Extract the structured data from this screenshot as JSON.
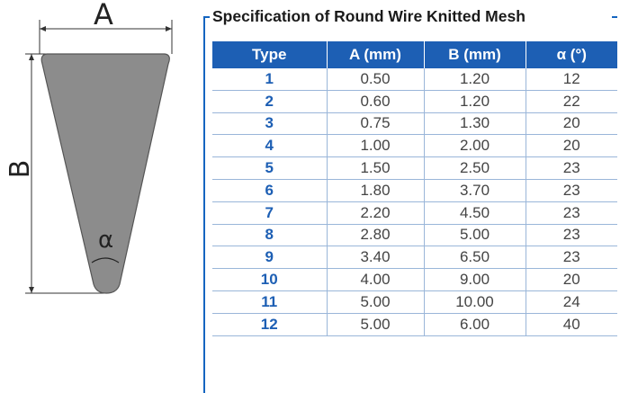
{
  "diagram": {
    "label_a": "A",
    "label_b": "B",
    "label_alpha": "α",
    "fill_color": "#8c8c8c"
  },
  "spec": {
    "title": "Specification of Round Wire Knitted Mesh",
    "accent_color": "#1d5fb4",
    "headers": [
      "Type",
      "A (mm)",
      "B (mm)",
      "α (°)"
    ],
    "rows": [
      [
        "1",
        "0.50",
        "1.20",
        "12"
      ],
      [
        "2",
        "0.60",
        "1.20",
        "22"
      ],
      [
        "3",
        "0.75",
        "1.30",
        "20"
      ],
      [
        "4",
        "1.00",
        "2.00",
        "20"
      ],
      [
        "5",
        "1.50",
        "2.50",
        "23"
      ],
      [
        "6",
        "1.80",
        "3.70",
        "23"
      ],
      [
        "7",
        "2.20",
        "4.50",
        "23"
      ],
      [
        "8",
        "2.80",
        "5.00",
        "23"
      ],
      [
        "9",
        "3.40",
        "6.50",
        "23"
      ],
      [
        "10",
        "4.00",
        "9.00",
        "20"
      ],
      [
        "11",
        "5.00",
        "10.00",
        "24"
      ],
      [
        "12",
        "5.00",
        "6.00",
        "40"
      ]
    ]
  }
}
